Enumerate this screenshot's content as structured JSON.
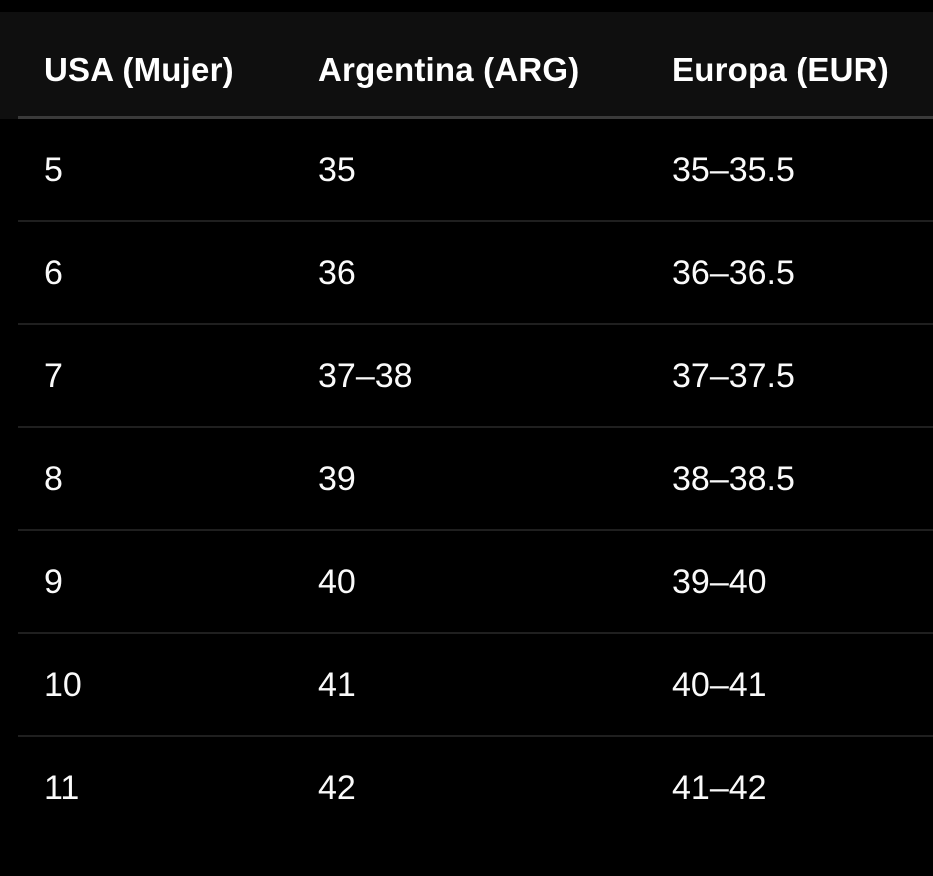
{
  "table": {
    "columns": [
      "USA (Mujer)",
      "Argentina (ARG)",
      "Europa (EUR)"
    ],
    "rows": [
      {
        "usa": "5",
        "arg": "35",
        "eur": "35–35.5"
      },
      {
        "usa": "6",
        "arg": "36",
        "eur": "36–36.5"
      },
      {
        "usa": "7",
        "arg": "37–38",
        "eur": "37–37.5"
      },
      {
        "usa": "8",
        "arg": "39",
        "eur": "38–38.5"
      },
      {
        "usa": "9",
        "arg": "40",
        "eur": "39–40"
      },
      {
        "usa": "10",
        "arg": "41",
        "eur": "40–41"
      },
      {
        "usa": "11",
        "arg": "42",
        "eur": "41–42"
      }
    ]
  },
  "colors": {
    "page_background": "#000000",
    "header_background": "#0f0f0f",
    "row_background": "#000000",
    "header_divider": "#3a3a3a",
    "row_divider": "#1f1f1f",
    "header_text": "#ffffff",
    "cell_text": "#fafafa"
  },
  "chart_data": {
    "type": "table",
    "title": "",
    "columns": [
      "USA (Mujer)",
      "Argentina (ARG)",
      "Europa (EUR)"
    ],
    "rows": [
      [
        "5",
        "35",
        "35–35.5"
      ],
      [
        "6",
        "36",
        "36–36.5"
      ],
      [
        "7",
        "37–38",
        "37–37.5"
      ],
      [
        "8",
        "39",
        "38–38.5"
      ],
      [
        "9",
        "40",
        "39–40"
      ],
      [
        "10",
        "41",
        "40–41"
      ],
      [
        "11",
        "42",
        "41–42"
      ]
    ]
  }
}
